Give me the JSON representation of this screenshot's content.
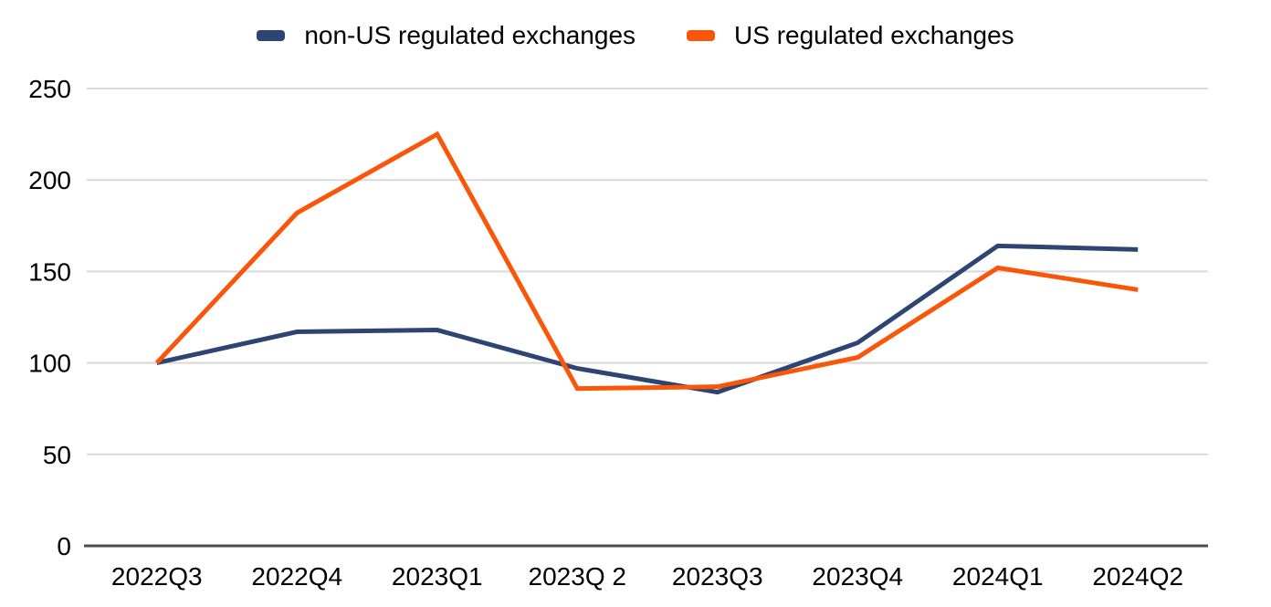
{
  "chart_data": {
    "type": "line",
    "categories": [
      "2022Q3",
      "2022Q4",
      "2023Q1",
      "2023Q 2",
      "2023Q3",
      "2023Q4",
      "2024Q1",
      "2024Q2"
    ],
    "series": [
      {
        "name": "non-US regulated exchanges",
        "color": "#2e4473",
        "values": [
          100,
          117,
          118,
          97,
          84,
          111,
          164,
          162
        ]
      },
      {
        "name": "US regulated exchanges",
        "color": "#f95609",
        "values": [
          100,
          182,
          225,
          86,
          87,
          103,
          152,
          140
        ]
      }
    ],
    "title": "",
    "xlabel": "",
    "ylabel": "",
    "ylim": [
      0,
      250
    ],
    "yticks": [
      0,
      50,
      100,
      150,
      200,
      250
    ],
    "grid": true,
    "legend_position": "top"
  },
  "colors": {
    "background": "#ffffff",
    "gridline": "#d9d9d9",
    "axis_line": "#4d4d4d",
    "tick_text": "#000000",
    "series_non_us": "#2e4473",
    "series_us": "#f95609"
  }
}
